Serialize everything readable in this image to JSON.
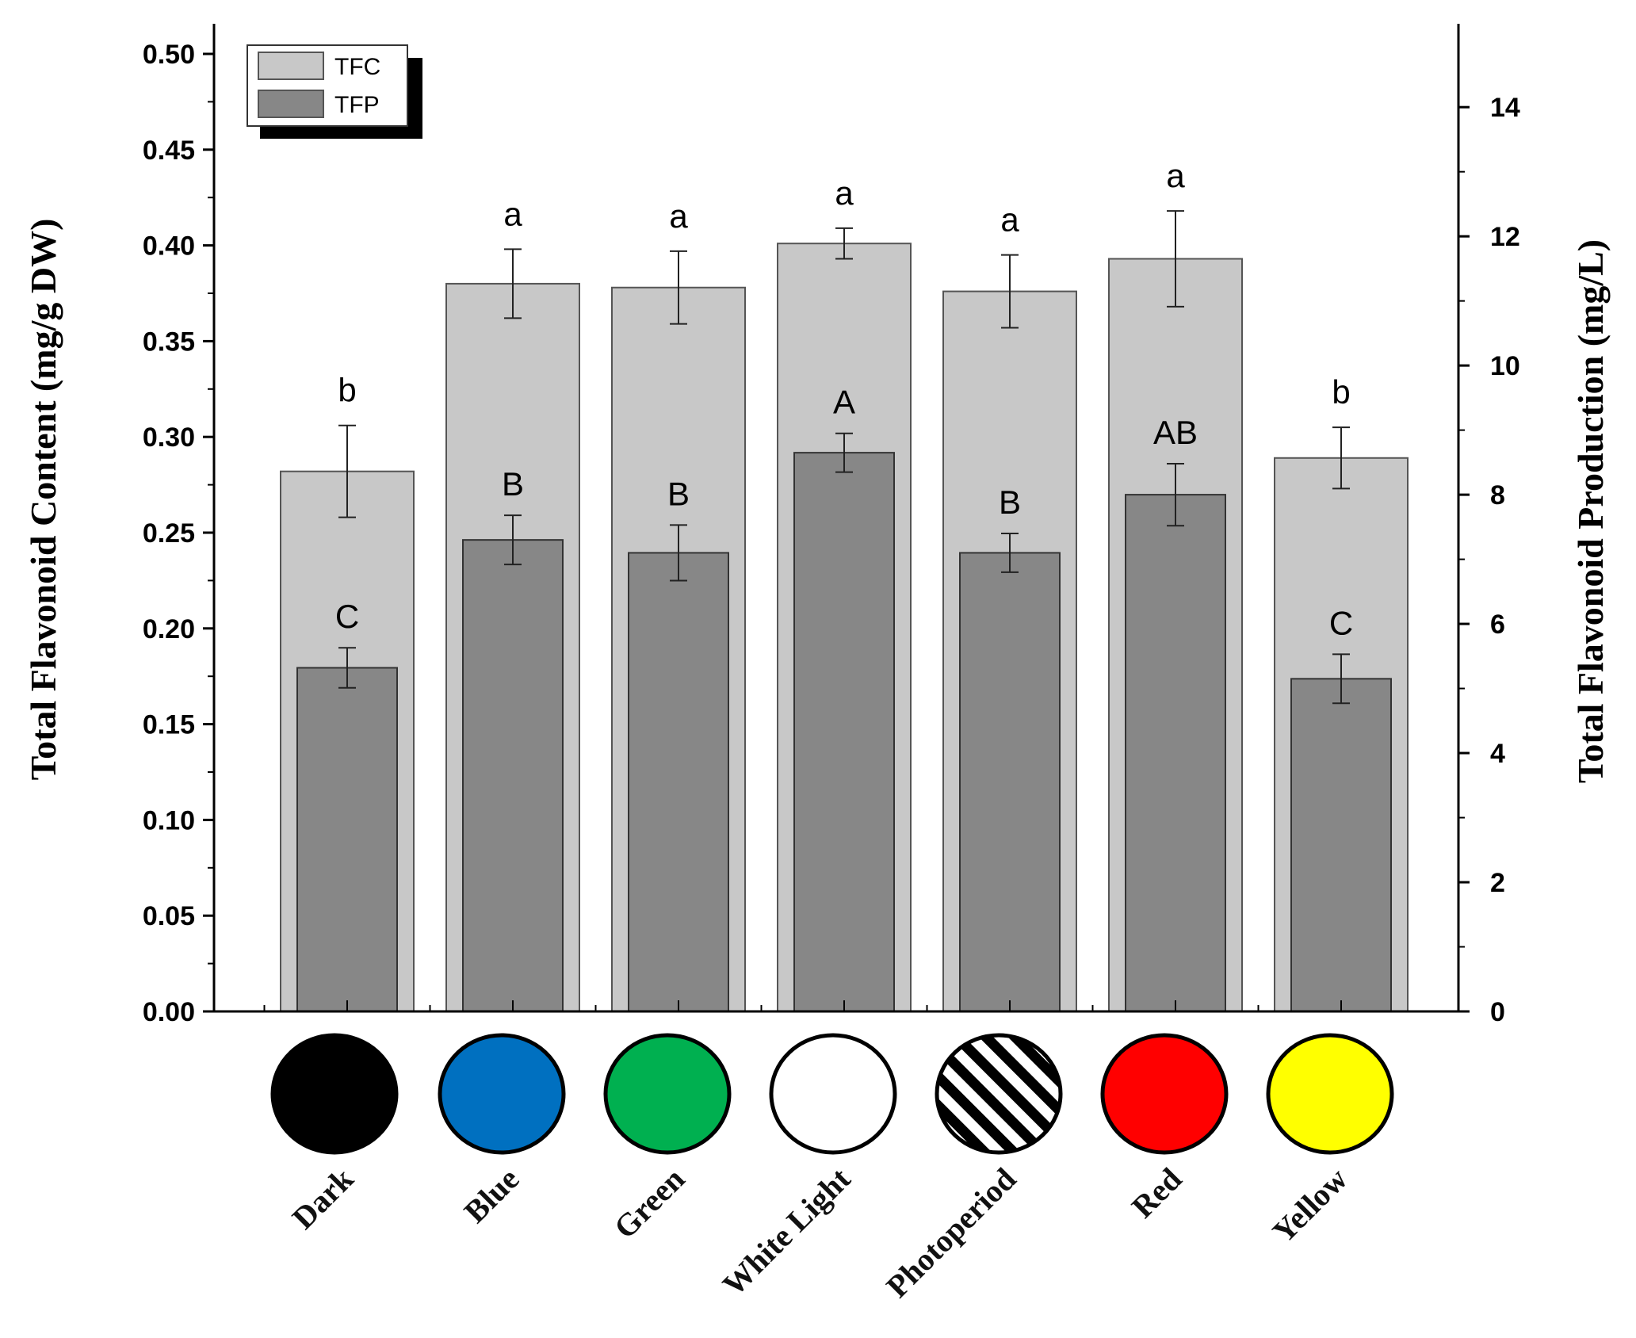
{
  "chart_data": {
    "type": "bar",
    "categories": [
      "Dark",
      "Blue",
      "Green",
      "White Light",
      "Photoperiod",
      "Red",
      "Yellow"
    ],
    "category_colors": [
      "#000000",
      "#0070c0",
      "#00b050",
      "#ffffff",
      "striped",
      "#ff0000",
      "#ffff00"
    ],
    "y_left": {
      "label": "Total Flavonoid Content (mg/g DW)",
      "range": [
        0,
        0.5
      ],
      "ticks": [
        "0.00",
        "0.05",
        "0.10",
        "0.15",
        "0.20",
        "0.25",
        "0.30",
        "0.35",
        "0.40",
        "0.45",
        "0.50"
      ]
    },
    "y_right": {
      "label": "Total Flavonoid Production (mg/L)",
      "range": [
        0,
        14.8
      ],
      "ticks": [
        "0",
        "2",
        "4",
        "6",
        "8",
        "10",
        "12",
        "14"
      ]
    },
    "series": [
      {
        "name": "TFC",
        "axis": "left",
        "color": "#c8c8c8",
        "values": [
          0.282,
          0.38,
          0.378,
          0.401,
          0.376,
          0.393,
          0.289
        ],
        "errors": [
          0.024,
          0.018,
          0.019,
          0.008,
          0.019,
          0.025,
          0.016
        ],
        "significance": [
          "b",
          "a",
          "a",
          "a",
          "a",
          "a",
          "b"
        ]
      },
      {
        "name": "TFP",
        "axis": "right",
        "color": "#878787",
        "values": [
          5.32,
          7.3,
          7.1,
          8.65,
          7.1,
          8.0,
          5.15
        ],
        "errors": [
          0.31,
          0.38,
          0.43,
          0.3,
          0.3,
          0.48,
          0.38
        ],
        "significance": [
          "C",
          "B",
          "B",
          "A",
          "B",
          "AB",
          "C"
        ]
      }
    ],
    "legend": {
      "position": "top-left",
      "entries": [
        "TFC",
        "TFP"
      ]
    }
  }
}
